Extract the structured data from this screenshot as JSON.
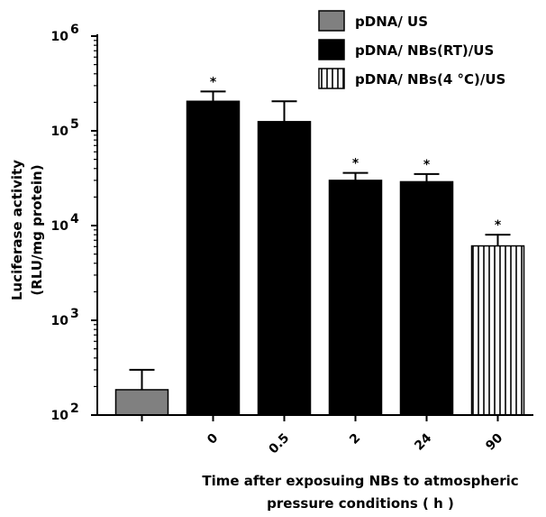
{
  "chart_data": {
    "type": "bar",
    "yscale": "log",
    "ylim": [
      100,
      1000000
    ],
    "ylabel_lines": [
      "Luciferase activity",
      "(RLU/mg protein)"
    ],
    "xlabel_lines": [
      "Time after exposuing NBs to atmospheric",
      "pressure conditions ( h )"
    ],
    "yticks": [
      {
        "value": 100,
        "base": "10",
        "exp": "2"
      },
      {
        "value": 1000,
        "base": "10",
        "exp": "3"
      },
      {
        "value": 10000,
        "base": "10",
        "exp": "4"
      },
      {
        "value": 100000,
        "base": "10",
        "exp": "5"
      },
      {
        "value": 1000000,
        "base": "10",
        "exp": "6"
      }
    ],
    "categories": [
      "",
      "0",
      "0.5",
      "2",
      "24",
      "90"
    ],
    "bars": [
      {
        "category": "",
        "series": "pDNA/ US",
        "value": 185,
        "error_upper": 300,
        "significant": false
      },
      {
        "category": "0",
        "series": "pDNA/ NBs(RT)/US",
        "value": 205000,
        "error_upper": 260000,
        "significant": true
      },
      {
        "category": "0.5",
        "series": "pDNA/ NBs(RT)/US",
        "value": 125000,
        "error_upper": 205000,
        "significant": false
      },
      {
        "category": "2",
        "series": "pDNA/ NBs(RT)/US",
        "value": 30000,
        "error_upper": 36000,
        "significant": true
      },
      {
        "category": "24",
        "series": "pDNA/ NBs(RT)/US",
        "value": 29000,
        "error_upper": 35000,
        "significant": true
      },
      {
        "category": "90",
        "series": "pDNA/ NBs(4 °C)/US",
        "value": 6100,
        "error_upper": 8000,
        "significant": true
      }
    ],
    "significance_marker": "*",
    "legend": {
      "placement": "top-right",
      "entries": [
        {
          "name": "pDNA/ US",
          "fill": "#808080",
          "pattern": "solid"
        },
        {
          "name": "pDNA/ NBs(RT)/US",
          "fill": "#000000",
          "pattern": "solid"
        },
        {
          "name": "pDNA/ NBs(4 °C)/US",
          "fill": "#ffffff",
          "pattern": "vertical-lines"
        }
      ]
    }
  }
}
